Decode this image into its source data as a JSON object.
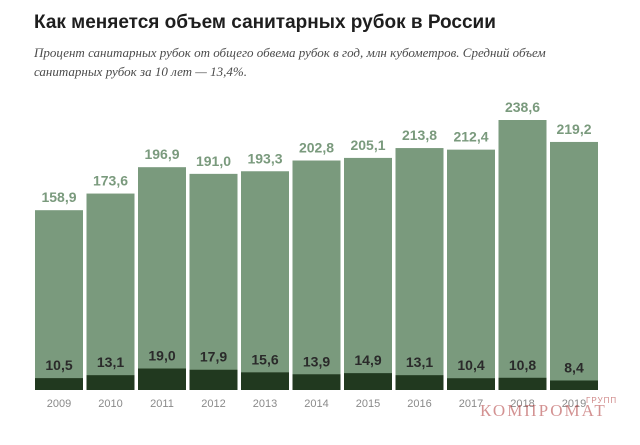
{
  "header": {
    "title": "Как меняется объем санитарных рубок в России",
    "subtitle": "Процент санитарных рубок от общего обвема рубок в год, млн кубометров. Средний объем санитарных рубок за 10 лет — 13,4%."
  },
  "watermark": {
    "text": "КОМПРОМАТ",
    "small": "ГРУПП"
  },
  "colors": {
    "total_bar": "#7a9a7d",
    "sanitary_bar": "#21391f",
    "total_label": "#7a9a7d",
    "sanitary_label": "#2a2a2a",
    "tick_label": "#8a8a8a"
  },
  "chart_data": {
    "type": "bar",
    "categories": [
      "2009",
      "2010",
      "2011",
      "2012",
      "2013",
      "2014",
      "2015",
      "2016",
      "2017",
      "2018",
      "2019"
    ],
    "series": [
      {
        "values": [
          158.9,
          173.6,
          196.9,
          191.0,
          193.3,
          202.8,
          205.1,
          213.8,
          212.4,
          238.6,
          219.2
        ],
        "labels": [
          "158,9",
          "173,6",
          "196,9",
          "191,0",
          "193,3",
          "202,8",
          "205,1",
          "213,8",
          "212,4",
          "238,6",
          "219,2"
        ]
      },
      {
        "values": [
          10.5,
          13.1,
          19.0,
          17.9,
          15.6,
          13.9,
          14.9,
          13.1,
          10.4,
          10.8,
          8.4
        ],
        "labels": [
          "10,5",
          "13,1",
          "19,0",
          "17,9",
          "15,6",
          "13,9",
          "14,9",
          "13,1",
          "10,4",
          "10,8",
          "8,4"
        ]
      }
    ],
    "ylim": [
      0,
      238.6
    ],
    "grid": false,
    "legend": "none"
  }
}
